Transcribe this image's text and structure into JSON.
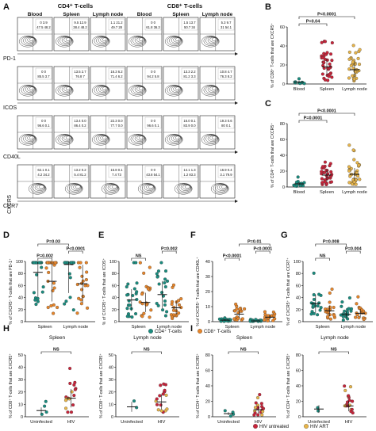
{
  "panel_letters": [
    "A",
    "B",
    "C",
    "D",
    "E",
    "F",
    "G",
    "H",
    "I"
  ],
  "flow": {
    "groups": [
      "CD4⁺ T-cells",
      "CD8⁺ T-cells"
    ],
    "tissues": [
      "Blood",
      "Spleen",
      "Lymph node",
      "Blood",
      "Spleen",
      "Lymph node"
    ],
    "markers": [
      "PD-1",
      "ICOS",
      "CD40L",
      "CCR7"
    ],
    "y_marker": "CXCR5",
    "quadrants": [
      [
        [
          "0 / 3.9",
          "47.5 / 48.2"
        ],
        [
          "9.5 / 12.9",
          "38.4 / 48.2"
        ],
        [
          "1.1 / 21.2",
          "49.7 / 28"
        ],
        [
          "0 / 0",
          "61.8 / 36.3"
        ],
        [
          "1.5 / 13.7",
          "50.7 / 34"
        ],
        [
          "5.3 / 9.7",
          "31 / 54.1"
        ]
      ],
      [
        [
          "0 / 0",
          "85.5 / 3.7"
        ],
        [
          "13.5 / 2.7",
          "76.8 / 7"
        ],
        [
          "16.3 / 6.2",
          "71.4 / 6.2"
        ],
        [
          "0 / 0",
          "94.2 / 5.8"
        ],
        [
          "13.3 / 2.2",
          "81.2 / 3.3"
        ],
        [
          "10.8 / 4.7",
          "76.3 / 8.2"
        ]
      ],
      [
        [
          "0 / 0",
          "96.6 / 0.1"
        ],
        [
          "13.4 / 0.0",
          "86.4 / 0.2"
        ],
        [
          "22.3 / 0.0",
          "77.7 / 0.0"
        ],
        [
          "0 / 0",
          "96.6 / 0.1"
        ],
        [
          "16.0 / 0.1",
          "83.9 / 0.0"
        ],
        [
          "19.3 / 0.6",
          "80 / 0.1"
        ]
      ],
      [
        [
          "62.1 / 0.1",
          "4.2 / 34.2"
        ],
        [
          "13.2 / 0.2",
          "5.4 / 81.2"
        ],
        [
          "15.8 / 0.1",
          "7.4 / 73"
        ],
        [
          "0 / 0",
          "43.8 / 54.1"
        ],
        [
          "14.1 / 1.3",
          "1.2 / 83.3"
        ],
        [
          "16.9 / 0.4",
          "3.1 / 79.9"
        ]
      ]
    ]
  },
  "charts": {
    "B": {
      "type": "scatter",
      "ylabel": "% of CD8⁺ T-cells that are CXCR5⁺",
      "categories": [
        "Blood",
        "Spleen",
        "Lymph node"
      ],
      "ylim": [
        0,
        60
      ],
      "yticks": [
        0,
        20,
        40,
        60
      ],
      "colors": [
        "#1a8c7f",
        "#c8243a",
        "#e8b54a"
      ],
      "medians": [
        2,
        18,
        15
      ],
      "n": [
        8,
        35,
        35
      ],
      "brackets": [
        {
          "from": 0,
          "to": 1,
          "label": "P=0.04"
        },
        {
          "from": 0,
          "to": 2,
          "label": "P<0.0001"
        }
      ]
    },
    "C": {
      "type": "scatter",
      "ylabel": "% of CD4⁺ T-cells that are CXCR5⁺",
      "categories": [
        "Blood",
        "Spleen",
        "Lymph node"
      ],
      "ylim": [
        0,
        80
      ],
      "yticks": [
        0,
        20,
        40,
        60,
        80
      ],
      "colors": [
        "#1a8c7f",
        "#c8243a",
        "#e8b54a"
      ],
      "medians": [
        4,
        15,
        16
      ],
      "n": [
        14,
        35,
        35
      ],
      "brackets": [
        {
          "from": 0,
          "to": 1,
          "label": "P=0.0001"
        },
        {
          "from": 0,
          "to": 2,
          "label": "P<0.0001"
        }
      ]
    },
    "D": {
      "type": "scatter",
      "ylabel": "% of CXCR5⁺ T-cells that are PD-1⁺",
      "categories": [
        "Spleen",
        "Lymph node"
      ],
      "ylim": [
        0,
        100
      ],
      "yticks": [
        0,
        20,
        40,
        60,
        80,
        100
      ],
      "medians": [
        82,
        67,
        95,
        63
      ],
      "n": [
        22,
        22,
        20,
        20
      ],
      "brackets": [
        {
          "from": 0,
          "to": 1,
          "label": "P=0.002"
        },
        {
          "from": 2,
          "to": 3,
          "label": "P<0.0001"
        },
        {
          "from": 0,
          "to": 2,
          "label": "P=0.03"
        }
      ]
    },
    "E": {
      "type": "scatter",
      "ylabel": "% of CXCR5⁺ T-cells that are ICOS⁺",
      "categories": [
        "Spleen",
        "Lymph node"
      ],
      "ylim": [
        0,
        100
      ],
      "yticks": [
        0,
        20,
        40,
        60,
        80,
        100
      ],
      "medians": [
        36,
        32,
        45,
        23
      ],
      "n": [
        22,
        22,
        20,
        20
      ],
      "brackets": [
        {
          "from": 0,
          "to": 1,
          "label": "NS"
        },
        {
          "from": 2,
          "to": 3,
          "label": "P=0.002"
        }
      ]
    },
    "F": {
      "type": "scatter",
      "ylabel": "% of CXCR5⁺ T-cells that are CD40L⁺",
      "categories": [
        "Spleen",
        "Lymph node"
      ],
      "ylim": [
        0,
        40
      ],
      "yticks": [
        0,
        10,
        20,
        30,
        40
      ],
      "medians": [
        1,
        5,
        0.5,
        3
      ],
      "n": [
        20,
        20,
        18,
        18
      ],
      "brackets": [
        {
          "from": 0,
          "to": 1,
          "label": "P<0.0001"
        },
        {
          "from": 2,
          "to": 3,
          "label": "P<0.0001"
        },
        {
          "from": 1,
          "to": 3,
          "label": "P=0.01"
        }
      ]
    },
    "G": {
      "type": "scatter",
      "ylabel": "% of CXCR5⁺ T-cells that are CCR7⁺",
      "categories": [
        "Spleen",
        "Lymph node"
      ],
      "ylim": [
        0,
        100
      ],
      "yticks": [
        0,
        20,
        40,
        60,
        80,
        100
      ],
      "medians": [
        30,
        18,
        12,
        14
      ],
      "n": [
        20,
        20,
        18,
        18
      ],
      "brackets": [
        {
          "from": 0,
          "to": 1,
          "label": "NS"
        },
        {
          "from": 2,
          "to": 3,
          "label": "P=0.004"
        },
        {
          "from": 0,
          "to": 2,
          "label": "P=0.008"
        }
      ]
    },
    "H1": {
      "type": "scatter",
      "title": "Spleen",
      "ylabel": "% of CD8⁺ T-cells that are CXCR5⁺",
      "categories": [
        "Uninfected",
        "HIV"
      ],
      "ylim": [
        0,
        50
      ],
      "yticks": [
        0,
        10,
        20,
        30,
        40,
        50
      ],
      "medians": [
        5,
        15
      ],
      "n": [
        4,
        18
      ],
      "brackets": [
        {
          "from": 0,
          "to": 1,
          "label": "NS"
        }
      ]
    },
    "H2": {
      "type": "scatter",
      "title": "Lymph node",
      "ylabel": "% of CD8⁺ T-cells that are CXCR5⁺",
      "categories": [
        "Uninfected",
        "HIV"
      ],
      "ylim": [
        0,
        50
      ],
      "yticks": [
        0,
        10,
        20,
        30,
        40,
        50
      ],
      "medians": [
        8,
        12
      ],
      "n": [
        2,
        18
      ],
      "brackets": [
        {
          "from": 0,
          "to": 1,
          "label": "NS"
        }
      ]
    },
    "I1": {
      "type": "scatter",
      "title": "Spleen",
      "ylabel": "% of CD4⁺ T-cells that are CXCR5⁺",
      "categories": [
        "Uninfected",
        "HIV"
      ],
      "ylim": [
        0,
        80
      ],
      "yticks": [
        0,
        20,
        40,
        60,
        80
      ],
      "medians": [
        4,
        9
      ],
      "n": [
        4,
        18
      ],
      "brackets": [
        {
          "from": 0,
          "to": 1,
          "label": "NS"
        }
      ]
    },
    "I2": {
      "type": "scatter",
      "title": "Lymph node",
      "ylabel": "% of CD4⁺ T-cells that are CXCR5⁺",
      "categories": [
        "Uninfected",
        "HIV"
      ],
      "ylim": [
        0,
        80
      ],
      "yticks": [
        0,
        20,
        40,
        60,
        80
      ],
      "medians": [
        10,
        14
      ],
      "n": [
        2,
        18
      ],
      "brackets": [
        {
          "from": 0,
          "to": 1,
          "label": "NS"
        }
      ]
    }
  },
  "legend_de": [
    {
      "label": "CD4⁺ T-cells",
      "color": "#1a8c7f"
    },
    {
      "label": "CD8⁺ T-cells",
      "color": "#e8862a"
    }
  ],
  "legend_hi": [
    {
      "label": "HIV untreated",
      "color": "#c8243a"
    },
    {
      "label": "HIV ART",
      "color": "#e8b54a"
    }
  ],
  "colors": {
    "teal": "#1a8c7f",
    "orange": "#e8862a",
    "red": "#c8243a",
    "gold": "#e8b54a"
  }
}
